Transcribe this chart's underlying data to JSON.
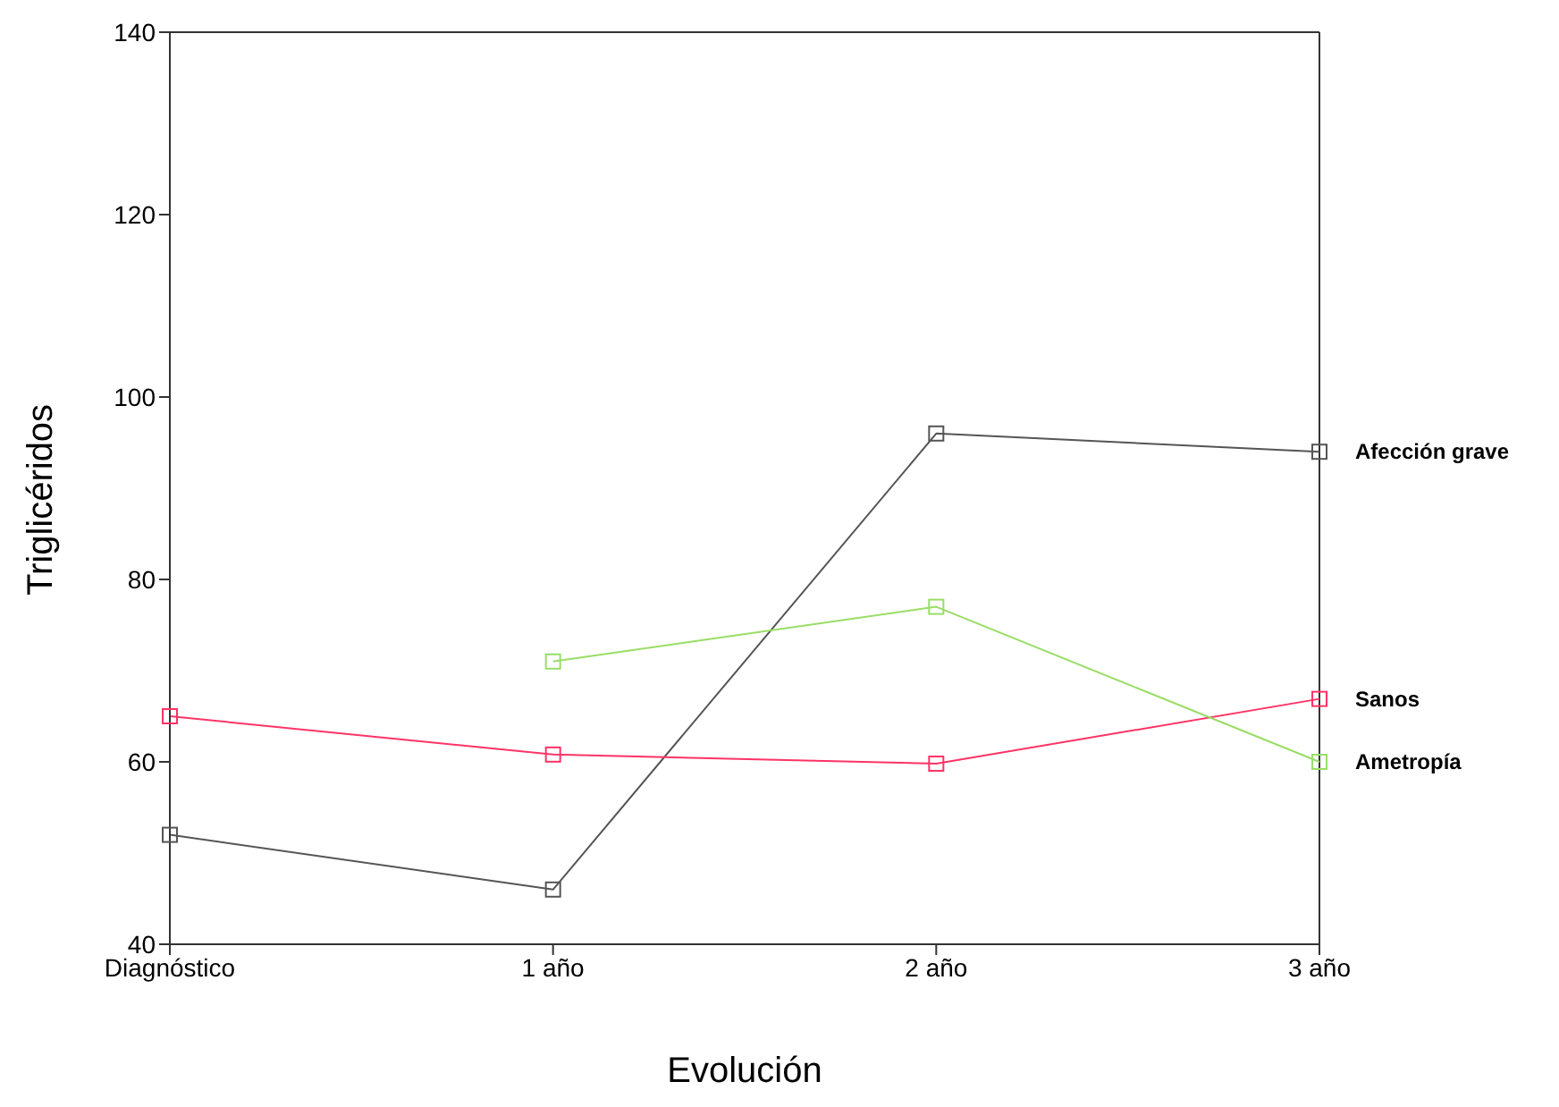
{
  "chart_data": {
    "type": "line",
    "xlabel": "Evolución",
    "ylabel": "Triglicéridos",
    "categories": [
      "Diagnóstico",
      "1 año",
      "2 año",
      "3 año"
    ],
    "series": [
      {
        "name": "Afección grave",
        "color": "#555555",
        "values": [
          52,
          46,
          96,
          94
        ]
      },
      {
        "name": "Sanos",
        "color": "#ff3366",
        "values": [
          65,
          60.8,
          59.8,
          66.9
        ]
      },
      {
        "name": "Ametropía",
        "color": "#99dd66",
        "values": [
          null,
          71,
          77,
          60
        ]
      }
    ],
    "ylim": [
      40,
      140
    ],
    "yticks": [
      40,
      60,
      80,
      100,
      120,
      140
    ],
    "grid": false,
    "legend": false,
    "marker": "square",
    "line_style": "solid"
  }
}
